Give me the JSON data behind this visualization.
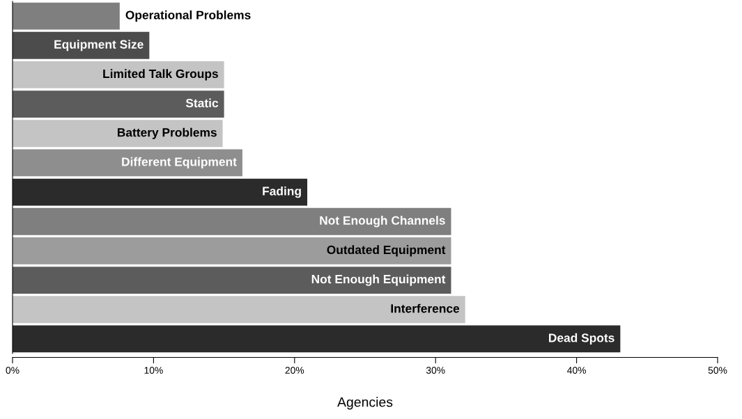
{
  "chart_data": {
    "type": "bar",
    "orientation": "horizontal",
    "xlabel": "Agencies",
    "categories": [
      "Operational Problems",
      "Equipment Size",
      "Limited Talk Groups",
      "Static",
      "Battery Problems",
      "Different Equipment",
      "Fading",
      "Not Enough Channels",
      "Outdated Equipment",
      "Not Enough Equipment",
      "Interference",
      "Dead Spots"
    ],
    "values": [
      7.6,
      9.7,
      15.0,
      15.0,
      14.9,
      16.3,
      20.9,
      31.1,
      31.1,
      31.1,
      32.1,
      43.1
    ],
    "colors": [
      "#7f7f7f",
      "#4c4c4c",
      "#c4c4c4",
      "#5c5c5c",
      "#c4c4c4",
      "#8e8e8e",
      "#2b2b2b",
      "#7f7f7f",
      "#9c9c9c",
      "#5c5c5c",
      "#c4c4c4",
      "#2b2b2b"
    ],
    "xlim": [
      0,
      50
    ],
    "xticks": [
      {
        "value": 0,
        "label": "0%"
      },
      {
        "value": 10,
        "label": "10%"
      },
      {
        "value": 20,
        "label": "20%"
      },
      {
        "value": 30,
        "label": "30%"
      },
      {
        "value": 40,
        "label": "40%"
      },
      {
        "value": 50,
        "label": "50%"
      }
    ],
    "tick_labels": "x",
    "grid": false
  }
}
